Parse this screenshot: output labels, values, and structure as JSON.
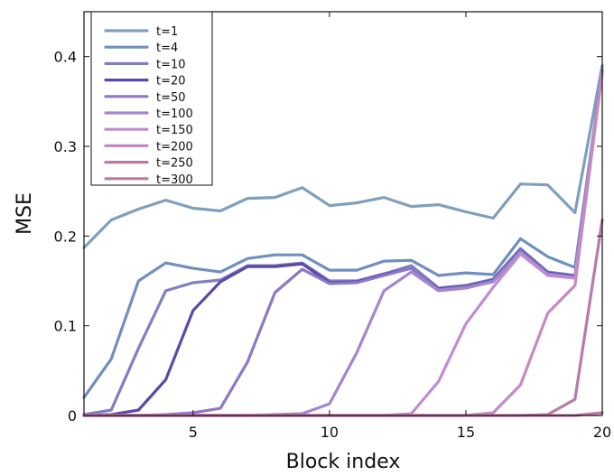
{
  "chart_data": {
    "type": "line",
    "xlabel": "Block index",
    "ylabel": "MSE",
    "xlim": [
      1,
      20
    ],
    "ylim": [
      0,
      0.45
    ],
    "xticks": [
      5,
      10,
      15,
      20
    ],
    "yticks": [
      0,
      0.1,
      0.2,
      0.3,
      0.4
    ],
    "xtick_labels": [
      "5",
      "10",
      "15",
      "20"
    ],
    "ytick_labels": [
      "0",
      "0.1",
      "0.2",
      "0.3",
      "0.4"
    ],
    "legend_position": "top-left",
    "grid": false,
    "x": [
      1,
      2,
      3,
      4,
      5,
      6,
      7,
      8,
      9,
      10,
      11,
      12,
      13,
      14,
      15,
      16,
      17,
      18,
      19,
      20
    ],
    "series": [
      {
        "name": "t=1",
        "color": "#7f9fbf",
        "values": [
          0.187,
          0.218,
          0.23,
          0.24,
          0.231,
          0.228,
          0.242,
          0.243,
          0.254,
          0.234,
          0.237,
          0.243,
          0.233,
          0.235,
          0.227,
          0.22,
          0.258,
          0.257,
          0.226,
          0.39
        ]
      },
      {
        "name": "t=4",
        "color": "#6f8fbf",
        "values": [
          0.02,
          0.063,
          0.15,
          0.17,
          0.164,
          0.16,
          0.175,
          0.179,
          0.179,
          0.162,
          0.162,
          0.172,
          0.173,
          0.156,
          0.159,
          0.157,
          0.197,
          0.177,
          0.165,
          0.385
        ]
      },
      {
        "name": "t=10",
        "color": "#7f7fc4",
        "values": [
          0.001,
          0.006,
          0.075,
          0.139,
          0.148,
          0.151,
          0.167,
          0.167,
          0.17,
          0.15,
          0.15,
          0.158,
          0.167,
          0.142,
          0.145,
          0.152,
          0.186,
          0.16,
          0.156,
          0.385
        ]
      },
      {
        "name": "t=20",
        "color": "#5a4aa8",
        "values": [
          0.0,
          0.001,
          0.006,
          0.04,
          0.117,
          0.149,
          0.166,
          0.166,
          0.169,
          0.148,
          0.149,
          0.157,
          0.164,
          0.141,
          0.144,
          0.151,
          0.184,
          0.159,
          0.155,
          0.384
        ]
      },
      {
        "name": "t=50",
        "color": "#8e78c8",
        "values": [
          0.0,
          0.0,
          0.0,
          0.001,
          0.003,
          0.008,
          0.06,
          0.137,
          0.163,
          0.147,
          0.148,
          0.156,
          0.164,
          0.14,
          0.143,
          0.15,
          0.183,
          0.158,
          0.154,
          0.384
        ]
      },
      {
        "name": "t=100",
        "color": "#a486cc",
        "values": [
          0.0,
          0.0,
          0.0,
          0.0,
          0.0,
          0.0,
          0.0,
          0.001,
          0.002,
          0.013,
          0.07,
          0.139,
          0.16,
          0.139,
          0.142,
          0.149,
          0.182,
          0.157,
          0.154,
          0.383
        ]
      },
      {
        "name": "t=150",
        "color": "#c08cd2",
        "values": [
          0.0,
          0.0,
          0.0,
          0.0,
          0.0,
          0.0,
          0.0,
          0.0,
          0.0,
          0.0,
          0.0,
          0.0,
          0.002,
          0.038,
          0.102,
          0.143,
          0.18,
          0.156,
          0.153,
          0.383
        ]
      },
      {
        "name": "t=200",
        "color": "#c58ac2",
        "values": [
          0.0,
          0.0,
          0.0,
          0.0,
          0.0,
          0.0,
          0.0,
          0.0,
          0.0,
          0.0,
          0.0,
          0.0,
          0.0,
          0.0,
          0.0,
          0.003,
          0.034,
          0.114,
          0.145,
          0.383
        ]
      },
      {
        "name": "t=250",
        "color": "#b87aa8",
        "values": [
          0.0,
          0.0,
          0.0,
          0.0,
          0.0,
          0.0,
          0.0,
          0.0,
          0.0,
          0.0,
          0.0,
          0.0,
          0.0,
          0.0,
          0.0,
          0.0,
          0.0,
          0.001,
          0.018,
          0.218
        ]
      },
      {
        "name": "t=300",
        "color": "#c07aa0",
        "values": [
          0.0,
          0.0,
          0.0,
          0.0,
          0.0,
          0.0,
          0.0,
          0.0,
          0.0,
          0.0,
          0.0,
          0.0,
          0.0,
          0.0,
          0.0,
          0.0,
          0.0,
          0.0,
          0.0,
          0.003
        ]
      }
    ]
  }
}
